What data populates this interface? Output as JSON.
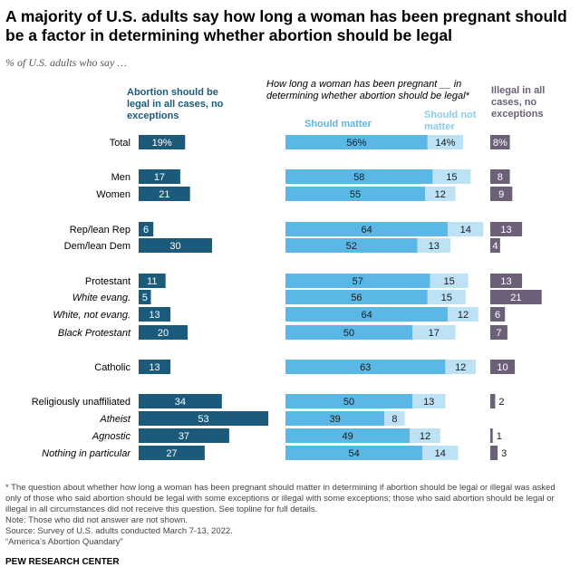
{
  "title": "A majority of U.S. adults say how long a woman has been pregnant should be a factor in determining whether abortion should be legal",
  "subtitle": "% of U.S. adults who say …",
  "headers": {
    "legal_all": "Abortion should be legal in all cases, no exceptions",
    "question": "How long a woman has been pregnant __ in determining whether abortion should be legal*",
    "should_matter": "Should matter",
    "should_not_matter": "Should not matter",
    "illegal_all": "Illegal in all cases, no exceptions"
  },
  "colors": {
    "legal": "#1b5a7a",
    "matter": "#5bb8e6",
    "not_matter": "#bde2f5",
    "illegal": "#6b6078"
  },
  "chart_data": {
    "type": "bar",
    "series": [
      {
        "name": "Abortion should be legal in all cases, no exceptions",
        "values": [
          19,
          17,
          21,
          6,
          30,
          11,
          5,
          13,
          20,
          13,
          34,
          53,
          37,
          27
        ]
      },
      {
        "name": "Should matter",
        "values": [
          56,
          58,
          55,
          64,
          52,
          57,
          56,
          64,
          50,
          63,
          50,
          39,
          49,
          54
        ]
      },
      {
        "name": "Should not matter",
        "values": [
          14,
          15,
          12,
          14,
          13,
          15,
          15,
          12,
          17,
          12,
          13,
          8,
          12,
          14
        ]
      },
      {
        "name": "Illegal in all cases, no exceptions",
        "values": [
          8,
          8,
          9,
          13,
          4,
          13,
          21,
          6,
          7,
          10,
          2,
          0,
          1,
          3
        ]
      }
    ],
    "categories": [
      "Total",
      "Men",
      "Women",
      "Rep/lean Rep",
      "Dem/lean Dem",
      "Protestant",
      "White evang.",
      "White, not evang.",
      "Black Protestant",
      "Catholic",
      "Religiously unaffiliated",
      "Atheist",
      "Agnostic",
      "Nothing in particular"
    ],
    "italic": [
      false,
      false,
      false,
      false,
      false,
      false,
      true,
      true,
      true,
      false,
      false,
      true,
      true,
      true
    ],
    "labels": {
      "legal": [
        "19%",
        "17",
        "21",
        "6",
        "30",
        "11",
        "5",
        "13",
        "20",
        "13",
        "34",
        "53",
        "37",
        "27"
      ],
      "matter": [
        "56%",
        "58",
        "55",
        "64",
        "52",
        "57",
        "56",
        "64",
        "50",
        "63",
        "50",
        "39",
        "49",
        "54"
      ],
      "not_matter": [
        "14%",
        "15",
        "12",
        "14",
        "13",
        "15",
        "15",
        "12",
        "17",
        "12",
        "13",
        "8",
        "12",
        "14"
      ],
      "illegal": [
        "8%",
        "8",
        "9",
        "13",
        "4",
        "13",
        "21",
        "6",
        "7",
        "10",
        "2",
        "",
        "1",
        "3"
      ]
    }
  },
  "notes": [
    "* The question about whether how long a woman has been pregnant should matter in determining if abortion should be legal or illegal was asked only of those who said abortion should be legal with some exceptions or illegal with some exceptions; those who said abortion should be legal or illegal in all circumstances did not receive this question. See topline for full details.",
    "Note: Those who did not answer are not shown.",
    "Source: Survey of U.S. adults conducted March 7-13, 2022.",
    "“America’s Abortion Quandary”"
  ],
  "brand": "PEW RESEARCH CENTER"
}
